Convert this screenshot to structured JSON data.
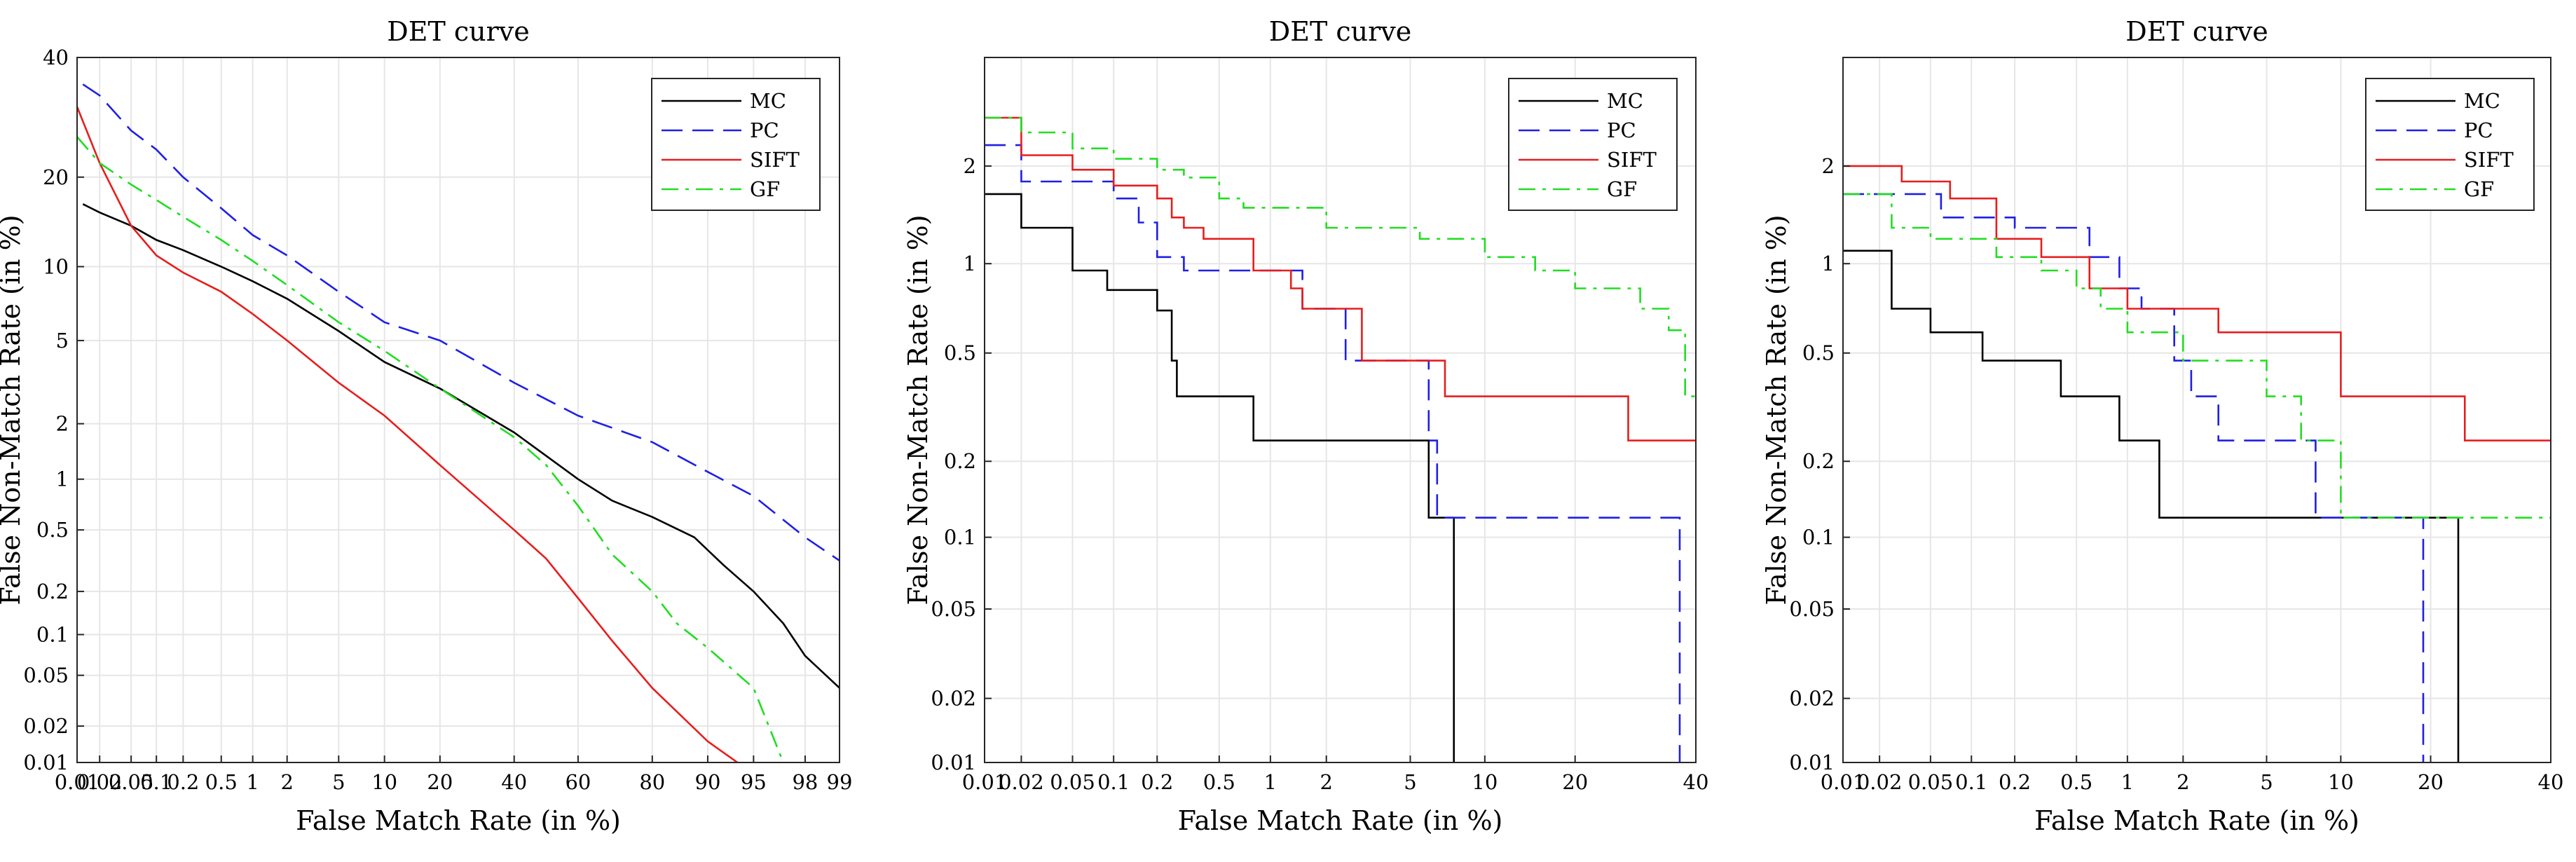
{
  "chart_data": [
    {
      "type": "line",
      "title": "DET curve",
      "xlabel": "False Match Rate (in %)",
      "ylabel": "False Non-Match Rate (in %)",
      "xscale": "probit",
      "yscale": "probit",
      "xlim": [
        0.01,
        99
      ],
      "ylim": [
        0.01,
        40
      ],
      "xticks": [
        0.01,
        0.02,
        0.05,
        0.1,
        0.2,
        0.5,
        1,
        2,
        5,
        10,
        20,
        40,
        60,
        80,
        90,
        95,
        98,
        99
      ],
      "xtick_labels": [
        "0.01",
        "0.02",
        "0.05",
        "0.1",
        "0.2",
        "0.5",
        "1",
        "2",
        "5",
        "10",
        "20",
        "40",
        "60",
        "80",
        "90",
        "95",
        "98",
        "99"
      ],
      "yticks": [
        0.01,
        0.02,
        0.05,
        0.1,
        0.2,
        0.5,
        1,
        2,
        5,
        10,
        20,
        40
      ],
      "ytick_labels": [
        "0.01",
        "0.02",
        "0.05",
        "0.1",
        "0.2",
        "0.5",
        "1",
        "2",
        "5",
        "10",
        "20",
        "40"
      ],
      "grid": true,
      "legend_position": "top-right",
      "series": [
        {
          "name": "MC",
          "color": "#000000",
          "dash": "solid",
          "step": false,
          "x": [
            0.012,
            0.02,
            0.05,
            0.1,
            0.2,
            0.5,
            1,
            2,
            5,
            10,
            20,
            40,
            60,
            70,
            80,
            88,
            92,
            95,
            97,
            98,
            99
          ],
          "y": [
            16.5,
            15.5,
            14,
            12.5,
            11.5,
            10,
            8.8,
            7.5,
            5.5,
            4,
            3,
            1.8,
            1.0,
            0.75,
            0.6,
            0.45,
            0.3,
            0.2,
            0.12,
            0.07,
            0.04
          ]
        },
        {
          "name": "PC",
          "color": "#1f1fe6",
          "dash": "dashed",
          "step": false,
          "x": [
            0.012,
            0.02,
            0.05,
            0.1,
            0.2,
            0.5,
            1,
            2,
            5,
            10,
            20,
            40,
            60,
            80,
            90,
            95,
            98,
            99
          ],
          "y": [
            35,
            33,
            27,
            24,
            20,
            16,
            13,
            11,
            8,
            6,
            5,
            3.2,
            2.2,
            1.6,
            1.1,
            0.8,
            0.45,
            0.32
          ]
        },
        {
          "name": "SIFT",
          "color": "#e61e1e",
          "dash": "solid",
          "step": false,
          "x": [
            0.01,
            0.02,
            0.05,
            0.1,
            0.2,
            0.5,
            1,
            2,
            5,
            10,
            20,
            40,
            50,
            60,
            70,
            80,
            90,
            95
          ],
          "y": [
            31,
            22,
            14,
            11,
            9.5,
            8,
            6.5,
            5,
            3.2,
            2.2,
            1.2,
            0.5,
            0.33,
            0.18,
            0.09,
            0.04,
            0.015,
            0.008
          ]
        },
        {
          "name": "GF",
          "color": "#22dd22",
          "dash": "dashdot",
          "step": false,
          "x": [
            0.01,
            0.02,
            0.05,
            0.1,
            0.2,
            0.5,
            1,
            2,
            5,
            10,
            20,
            40,
            50,
            60,
            70,
            80,
            85,
            90,
            95,
            97
          ],
          "y": [
            26,
            22,
            19,
            17,
            15,
            12.5,
            10.5,
            8.5,
            6,
            4.5,
            3,
            1.7,
            1.2,
            0.7,
            0.35,
            0.2,
            0.12,
            0.08,
            0.04,
            0.01
          ]
        }
      ]
    },
    {
      "type": "line",
      "title": "DET curve",
      "xlabel": "False Match Rate (in %)",
      "ylabel": "False Non-Match Rate (in %)",
      "xscale": "probit",
      "yscale": "probit",
      "xlim": [
        0.01,
        40
      ],
      "ylim": [
        0.01,
        4
      ],
      "xticks": [
        0.01,
        0.02,
        0.05,
        0.1,
        0.2,
        0.5,
        1,
        2,
        5,
        10,
        20,
        40
      ],
      "xtick_labels": [
        "0.01",
        "0.02",
        "0.05",
        "0.1",
        "0.2",
        "0.5",
        "1",
        "2",
        "5",
        "10",
        "20",
        "40"
      ],
      "yticks": [
        0.01,
        0.02,
        0.05,
        0.1,
        0.2,
        0.5,
        1,
        2
      ],
      "ytick_labels": [
        "0.01",
        "0.02",
        "0.05",
        "0.1",
        "0.2",
        "0.5",
        "1",
        "2"
      ],
      "grid": true,
      "legend_position": "top-right",
      "series": [
        {
          "name": "MC",
          "color": "#000000",
          "dash": "solid",
          "step": true,
          "x": [
            0.01,
            0.02,
            0.05,
            0.09,
            0.11,
            0.2,
            0.25,
            0.27,
            0.3,
            0.8,
            6.0,
            7.6,
            7.6
          ],
          "y": [
            1.65,
            1.3,
            0.95,
            0.82,
            0.82,
            0.7,
            0.47,
            0.35,
            0.35,
            0.24,
            0.12,
            0.12,
            0.008
          ]
        },
        {
          "name": "PC",
          "color": "#1f1fe6",
          "dash": "dashed",
          "step": true,
          "x": [
            0.01,
            0.02,
            0.1,
            0.15,
            0.2,
            0.3,
            1.0,
            1.5,
            2.5,
            6.0,
            6.5,
            7.0,
            37,
            37
          ],
          "y": [
            2.3,
            1.8,
            1.6,
            1.35,
            1.05,
            0.95,
            0.95,
            0.71,
            0.47,
            0.24,
            0.12,
            0.12,
            0.12,
            0.008
          ]
        },
        {
          "name": "SIFT",
          "color": "#e61e1e",
          "dash": "solid",
          "step": true,
          "x": [
            0.01,
            0.02,
            0.05,
            0.1,
            0.2,
            0.25,
            0.3,
            0.4,
            0.8,
            1.3,
            1.5,
            3.0,
            7.0,
            28,
            40
          ],
          "y": [
            2.75,
            2.15,
            1.95,
            1.75,
            1.6,
            1.4,
            1.3,
            1.2,
            0.95,
            0.83,
            0.71,
            0.47,
            0.35,
            0.24,
            0.24
          ]
        },
        {
          "name": "GF",
          "color": "#22dd22",
          "dash": "dashdot",
          "step": true,
          "x": [
            0.01,
            0.02,
            0.05,
            0.1,
            0.2,
            0.3,
            0.5,
            0.7,
            2.0,
            3.0,
            5.5,
            10,
            15,
            20,
            30,
            35,
            38,
            40
          ],
          "y": [
            2.75,
            2.5,
            2.25,
            2.1,
            1.95,
            1.85,
            1.6,
            1.5,
            1.3,
            1.3,
            1.2,
            1.05,
            0.95,
            0.83,
            0.71,
            0.6,
            0.35,
            0.35
          ]
        }
      ]
    },
    {
      "type": "line",
      "title": "DET curve",
      "xlabel": "False Match Rate (in %)",
      "ylabel": "False Non-Match Rate (in %)",
      "xscale": "probit",
      "yscale": "probit",
      "xlim": [
        0.01,
        40
      ],
      "ylim": [
        0.01,
        4
      ],
      "xticks": [
        0.01,
        0.02,
        0.05,
        0.1,
        0.2,
        0.5,
        1,
        2,
        5,
        10,
        20,
        40
      ],
      "xtick_labels": [
        "0.01",
        "0.02",
        "0.05",
        "0.1",
        "0.2",
        "0.5",
        "1",
        "2",
        "5",
        "10",
        "20",
        "40"
      ],
      "yticks": [
        0.01,
        0.02,
        0.05,
        0.1,
        0.2,
        0.5,
        1,
        2
      ],
      "ytick_labels": [
        "0.01",
        "0.02",
        "0.05",
        "0.1",
        "0.2",
        "0.5",
        "1",
        "2"
      ],
      "grid": true,
      "legend_position": "top-right",
      "series": [
        {
          "name": "MC",
          "color": "#000000",
          "dash": "solid",
          "step": true,
          "x": [
            0.01,
            0.025,
            0.05,
            0.12,
            0.4,
            0.9,
            1.5,
            2.0,
            5.0,
            24,
            24
          ],
          "y": [
            1.1,
            0.71,
            0.59,
            0.47,
            0.35,
            0.24,
            0.12,
            0.12,
            0.12,
            0.12,
            0.008
          ]
        },
        {
          "name": "PC",
          "color": "#1f1fe6",
          "dash": "dashed",
          "step": true,
          "x": [
            0.01,
            0.03,
            0.06,
            0.2,
            0.6,
            0.9,
            1.2,
            1.8,
            2.2,
            3.0,
            8.0,
            10,
            19,
            19
          ],
          "y": [
            1.65,
            1.65,
            1.4,
            1.3,
            1.05,
            0.83,
            0.71,
            0.47,
            0.35,
            0.24,
            0.12,
            0.12,
            0.12,
            0.008
          ]
        },
        {
          "name": "SIFT",
          "color": "#e61e1e",
          "dash": "solid",
          "step": true,
          "x": [
            0.01,
            0.03,
            0.07,
            0.15,
            0.3,
            0.6,
            1.0,
            3.0,
            10,
            25,
            40
          ],
          "y": [
            2.0,
            1.8,
            1.6,
            1.2,
            1.05,
            0.83,
            0.71,
            0.59,
            0.35,
            0.24,
            0.24
          ]
        },
        {
          "name": "GF",
          "color": "#22dd22",
          "dash": "dashdot",
          "step": true,
          "x": [
            0.01,
            0.025,
            0.05,
            0.15,
            0.3,
            0.5,
            0.7,
            1.0,
            2.0,
            4.0,
            5.0,
            7.0,
            10,
            11,
            40
          ],
          "y": [
            1.65,
            1.3,
            1.2,
            1.05,
            0.95,
            0.83,
            0.71,
            0.59,
            0.47,
            0.47,
            0.35,
            0.24,
            0.12,
            0.12,
            0.12
          ]
        }
      ]
    }
  ]
}
